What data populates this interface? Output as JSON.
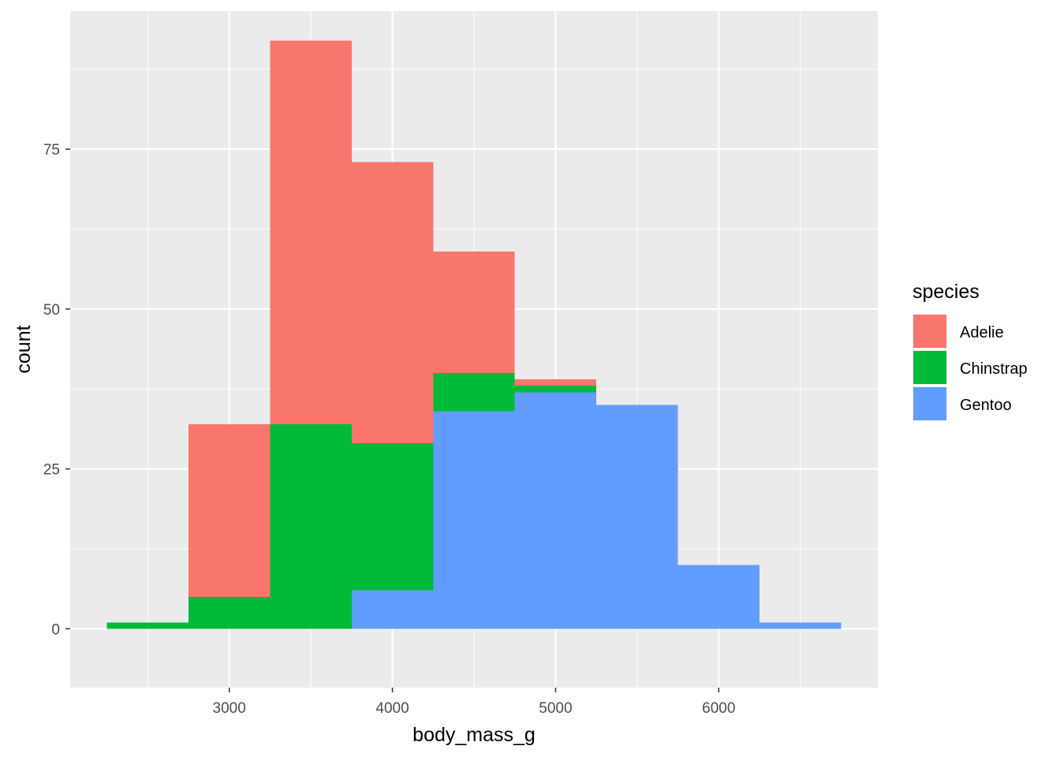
{
  "chart_data": {
    "type": "histogram",
    "stacked": true,
    "xlabel": "body_mass_g",
    "ylabel": "count",
    "xlim": [
      2025,
      6975
    ],
    "ylim": [
      -9.2,
      96.6
    ],
    "x_ticks": [
      3000,
      4000,
      5000,
      6000
    ],
    "x_tick_labels": [
      "3000",
      "4000",
      "5000",
      "6000"
    ],
    "y_ticks": [
      0,
      25,
      50,
      75
    ],
    "y_tick_labels": [
      "0",
      "25",
      "50",
      "75"
    ],
    "bin_edges": [
      2250,
      2750,
      3250,
      3750,
      4250,
      4750,
      5250,
      5750,
      6250,
      6750
    ],
    "stack_order": [
      "Gentoo",
      "Chinstrap",
      "Adelie"
    ],
    "series": [
      {
        "name": "Adelie",
        "color": "#F8766D",
        "values": [
          0,
          27,
          60,
          44,
          19,
          1,
          0,
          0,
          0
        ]
      },
      {
        "name": "Chinstrap",
        "color": "#00BA38",
        "values": [
          1,
          5,
          32,
          23,
          6,
          1,
          0,
          0,
          0
        ]
      },
      {
        "name": "Gentoo",
        "color": "#619CFF",
        "values": [
          0,
          0,
          0,
          6,
          34,
          37,
          35,
          10,
          1
        ]
      }
    ],
    "grid": true,
    "panel_background": "#EBEBEB",
    "grid_color": "#FFFFFF",
    "legend": {
      "title": "species",
      "position": "right",
      "entries": [
        {
          "label": "Adelie",
          "color": "#F8766D"
        },
        {
          "label": "Chinstrap",
          "color": "#00BA38"
        },
        {
          "label": "Gentoo",
          "color": "#619CFF"
        }
      ]
    }
  }
}
